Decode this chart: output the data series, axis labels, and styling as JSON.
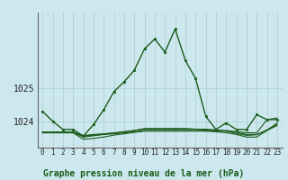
{
  "title": "Graphe pression niveau de la mer (hPa)",
  "bg_color": "#cce8ee",
  "grid_color": "#aacccc",
  "line_color": "#1a5c1a",
  "x_labels": [
    "0",
    "1",
    "2",
    "3",
    "4",
    "5",
    "6",
    "7",
    "8",
    "9",
    "10",
    "11",
    "12",
    "13",
    "14",
    "15",
    "16",
    "17",
    "18",
    "19",
    "20",
    "21",
    "22",
    "23"
  ],
  "yticks": [
    1024,
    1025
  ],
  "ylim": [
    1023.2,
    1027.3
  ],
  "main_line": [
    1024.3,
    1024.0,
    1023.75,
    1023.75,
    1023.55,
    1023.9,
    1024.35,
    1024.9,
    1025.2,
    1025.55,
    1026.2,
    1026.5,
    1026.1,
    1026.8,
    1025.85,
    1025.3,
    1024.15,
    1023.75,
    1023.95,
    1023.75,
    1023.75,
    1024.2,
    1024.05,
    1024.05
  ],
  "flat_lines": [
    [
      1023.65,
      1023.65,
      1023.65,
      1023.65,
      1023.55,
      1023.58,
      1023.6,
      1023.62,
      1023.65,
      1023.68,
      1023.72,
      1023.72,
      1023.72,
      1023.72,
      1023.72,
      1023.72,
      1023.72,
      1023.72,
      1023.72,
      1023.68,
      1023.65,
      1023.65,
      1024.05,
      1024.1
    ],
    [
      1023.65,
      1023.65,
      1023.65,
      1023.65,
      1023.45,
      1023.48,
      1023.52,
      1023.58,
      1023.62,
      1023.66,
      1023.7,
      1023.7,
      1023.7,
      1023.7,
      1023.7,
      1023.7,
      1023.7,
      1023.68,
      1023.65,
      1023.6,
      1023.52,
      1023.52,
      1023.72,
      1023.95
    ],
    [
      1023.67,
      1023.67,
      1023.67,
      1023.67,
      1023.57,
      1023.6,
      1023.62,
      1023.65,
      1023.68,
      1023.72,
      1023.76,
      1023.76,
      1023.76,
      1023.76,
      1023.76,
      1023.76,
      1023.76,
      1023.74,
      1023.7,
      1023.67,
      1023.6,
      1023.6,
      1023.72,
      1023.87
    ],
    [
      1023.67,
      1023.67,
      1023.67,
      1023.67,
      1023.52,
      1023.56,
      1023.6,
      1023.64,
      1023.68,
      1023.72,
      1023.78,
      1023.78,
      1023.78,
      1023.78,
      1023.78,
      1023.76,
      1023.73,
      1023.7,
      1023.7,
      1023.63,
      1023.57,
      1023.59,
      1023.74,
      1023.91
    ]
  ]
}
